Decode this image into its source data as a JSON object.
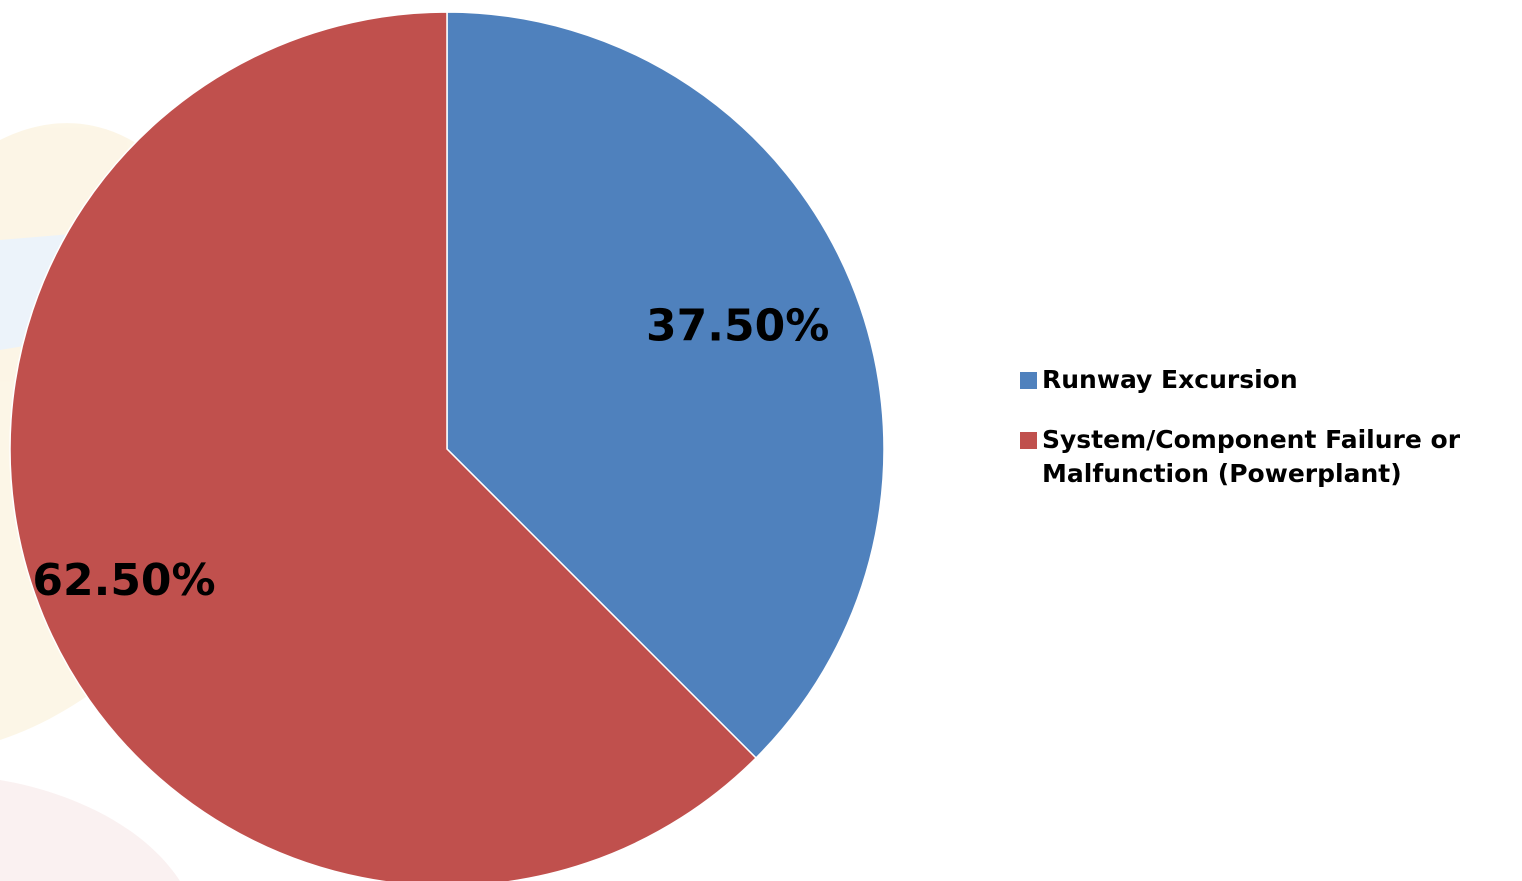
{
  "chart_data": {
    "type": "pie",
    "title": "",
    "legend_position": "right",
    "slices": [
      {
        "name": "Runway Excursion",
        "value": 37.5,
        "label": "37.50%",
        "color": "#4F81BD"
      },
      {
        "name": "System/Component Failure or Malfunction (Powerplant)",
        "value": 62.5,
        "label": "62.50%",
        "color": "#C0504D"
      }
    ]
  }
}
